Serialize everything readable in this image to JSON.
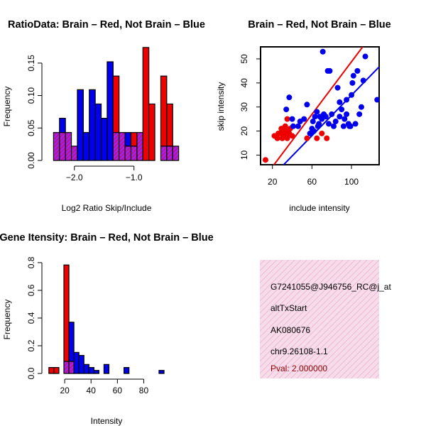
{
  "colors": {
    "brain": "#ee0000",
    "not_brain": "#0000ee",
    "overlap": "#a020f0",
    "overlap_hatch": "#ee0000",
    "info_bg": "#f5d5e8",
    "info_hatch": "#ecb6d4",
    "pval": "#8b0000"
  },
  "chart_data": [
    {
      "id": "ratio_hist",
      "type": "bar",
      "title": "RatioData: Brain – Red, Not Brain – Blue",
      "xlabel": "Log2 Ratio Skip/Include",
      "ylabel": "Frequency",
      "xlim": [
        -2.45,
        -0.46
      ],
      "ylim": [
        0,
        0.175
      ],
      "bin_width": 0.1,
      "bin_starts": [
        -2.35,
        -2.25,
        -2.15,
        -2.05,
        -1.95,
        -1.85,
        -1.75,
        -1.65,
        -1.55,
        -1.45,
        -1.35,
        -1.25,
        -1.15,
        -1.05,
        -0.95,
        -0.85,
        -0.75,
        -0.65,
        -0.55
      ],
      "x_ticks": [
        -2.0,
        -1.0
      ],
      "x_tick_labels": [
        "−2.0",
        "−1.0"
      ],
      "y_ticks": [
        0.0,
        0.05,
        0.1,
        0.15
      ],
      "y_tick_labels": [
        "0.00",
        "0.05",
        "0.10",
        "0.15"
      ],
      "series": [
        {
          "name": "Brain",
          "color": "brain",
          "values": [
            0.043,
            0.043,
            0.043,
            0.022,
            0.0,
            0.0,
            0.0,
            0.0,
            0.0,
            0.0,
            0.13,
            0.043,
            0.022,
            0.043,
            0.043,
            0.174,
            0.087,
            0.0,
            0.13,
            0.087,
            0.022
          ]
        },
        {
          "name": "Not Brain",
          "color": "not_brain",
          "values": [
            0.043,
            0.065,
            0.043,
            0.022,
            0.109,
            0.043,
            0.109,
            0.087,
            0.065,
            0.152,
            0.043,
            0.043,
            0.043,
            0.022,
            0.043,
            0.0,
            0.0,
            0.0,
            0.022,
            0.022,
            0.022
          ]
        }
      ],
      "bin_starts_full": [
        -2.35,
        -2.25,
        -2.15,
        -2.05,
        -1.95,
        -1.85,
        -1.75,
        -1.65,
        -1.55,
        -1.45,
        -1.35,
        -1.25,
        -1.15,
        -1.05,
        -0.95,
        -0.85,
        -0.75,
        -0.65,
        -0.55,
        -0.45,
        -0.35
      ]
    },
    {
      "id": "scatter",
      "type": "scatter",
      "title": "Brain – Red, Not Brain – Blue",
      "xlabel": "include intensity",
      "ylabel": "skip intensity",
      "xlim": [
        8,
        128
      ],
      "ylim": [
        6,
        55
      ],
      "x_ticks": [
        20,
        60,
        100
      ],
      "x_tick_labels": [
        "20",
        "60",
        "100"
      ],
      "y_ticks": [
        10,
        20,
        30,
        40,
        50
      ],
      "y_tick_labels": [
        "10",
        "20",
        "30",
        "40",
        "50"
      ],
      "series": [
        {
          "name": "Brain",
          "color": "brain",
          "points": [
            [
              13,
              8
            ],
            [
              22,
              18
            ],
            [
              25,
              17
            ],
            [
              28,
              19
            ],
            [
              30,
              20
            ],
            [
              31,
              21
            ],
            [
              32,
              18
            ],
            [
              33,
              22
            ],
            [
              35,
              17
            ],
            [
              35,
              25
            ],
            [
              30,
              17
            ],
            [
              29,
              21
            ],
            [
              37,
              19
            ],
            [
              40,
              18
            ],
            [
              26,
              19
            ],
            [
              31,
              19
            ],
            [
              34,
              20
            ],
            [
              38,
              21
            ],
            [
              55,
              17
            ],
            [
              65,
              17
            ],
            [
              75,
              17
            ],
            [
              70,
              19
            ]
          ],
          "fit": {
            "intercept": -5.8,
            "slope": 0.546
          }
        },
        {
          "name": "Not Brain",
          "color": "not_brain",
          "points": [
            [
              34,
              29
            ],
            [
              37,
              34
            ],
            [
              40,
              25
            ],
            [
              41,
              22
            ],
            [
              46,
              22
            ],
            [
              48,
              24
            ],
            [
              52,
              25
            ],
            [
              55,
              31
            ],
            [
              58,
              19
            ],
            [
              60,
              21
            ],
            [
              61,
              24
            ],
            [
              62,
              20
            ],
            [
              63,
              26
            ],
            [
              65,
              28
            ],
            [
              67,
              23
            ],
            [
              68,
              26
            ],
            [
              70,
              25
            ],
            [
              71,
              53
            ],
            [
              72,
              27
            ],
            [
              74,
              26
            ],
            [
              76,
              45
            ],
            [
              77,
              23
            ],
            [
              78,
              45
            ],
            [
              80,
              27
            ],
            [
              82,
              22
            ],
            [
              84,
              24
            ],
            [
              86,
              38
            ],
            [
              88,
              32
            ],
            [
              90,
              29
            ],
            [
              92,
              22
            ],
            [
              93,
              25
            ],
            [
              95,
              27
            ],
            [
              97,
              23
            ],
            [
              98,
              22
            ],
            [
              99,
              22
            ],
            [
              100,
              35
            ],
            [
              101,
              40
            ],
            [
              102,
              43
            ],
            [
              104,
              23
            ],
            [
              106,
              45
            ],
            [
              108,
              27
            ],
            [
              110,
              30
            ],
            [
              112,
              41
            ],
            [
              114,
              51
            ],
            [
              126,
              33
            ],
            [
              95,
              33
            ],
            [
              88,
              26
            ],
            [
              66,
              22
            ]
          ],
          "fit": {
            "intercept": -7.2,
            "slope": 0.421
          }
        }
      ]
    },
    {
      "id": "intensity_hist",
      "type": "bar",
      "title": "Gene Itensity: Brain – Red, Not Brain – Blue",
      "xlabel": "Intensity",
      "ylabel": "Frequency",
      "xlim": [
        7,
        97
      ],
      "ylim": [
        0,
        0.82
      ],
      "bin_width": 3.8,
      "bin_start": 8,
      "x_ticks": [
        20,
        40,
        60,
        80
      ],
      "x_tick_labels": [
        "20",
        "40",
        "60",
        "80"
      ],
      "y_ticks": [
        0.0,
        0.2,
        0.4,
        0.6,
        0.8
      ],
      "y_tick_labels": [
        "0.0",
        "0.2",
        "0.4",
        "0.6",
        "0.8"
      ],
      "series": [
        {
          "name": "Brain",
          "color": "brain",
          "values": [
            0.043,
            0.043,
            0.0,
            0.783,
            0.087,
            0.0,
            0.0,
            0.0,
            0.0,
            0.0,
            0.0,
            0.0,
            0.0,
            0.0,
            0.0,
            0.0,
            0.0,
            0.0,
            0.0,
            0.0,
            0.0,
            0.0,
            0.0
          ]
        },
        {
          "name": "Not Brain",
          "color": "not_brain",
          "values": [
            0.0,
            0.0,
            0.0,
            0.087,
            0.37,
            0.152,
            0.13,
            0.065,
            0.043,
            0.022,
            0.0,
            0.065,
            0.0,
            0.0,
            0.0,
            0.043,
            0.0,
            0.0,
            0.0,
            0.0,
            0.0,
            0.0,
            0.022
          ]
        }
      ]
    }
  ],
  "info_box": {
    "probe": "G7241055@J946756_RC@j_at",
    "event_type": "altTxStart",
    "accession": "AK080676",
    "location": "chr9.26108-1.1",
    "pval": "Pval: 2.000000"
  }
}
